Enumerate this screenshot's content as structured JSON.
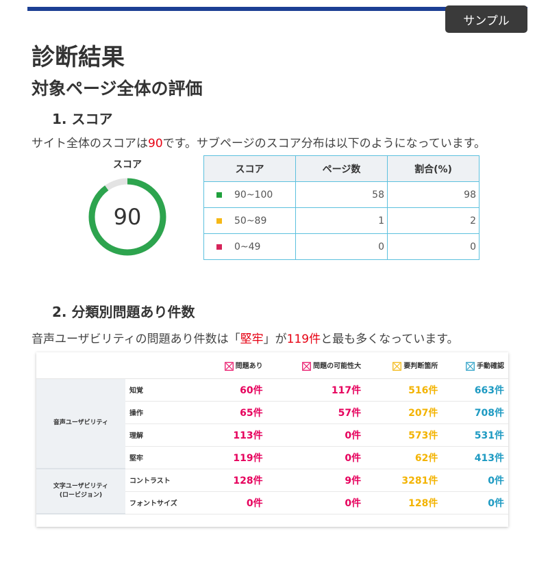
{
  "badge": "サンプル",
  "title": "診断結果",
  "subtitle": "対象ページ全体の評価",
  "section1": {
    "heading": "1. スコア",
    "text_before": "サイト全体のスコアは",
    "score": "90",
    "text_after": "です。サブページのスコア分布は以下のようになっています。",
    "gauge_label": "スコア",
    "gauge_value": "90",
    "gauge_fraction": 0.9,
    "colors": {
      "good": "#2da44e",
      "track": "#e3e3e3"
    },
    "table": {
      "headers": [
        "スコア",
        "ページ数",
        "割合(%)"
      ],
      "rows": [
        {
          "range": "90~100",
          "pages": "58",
          "percent": "98",
          "color": "#1fa03c"
        },
        {
          "range": "50~89",
          "pages": "1",
          "percent": "2",
          "color": "#f5b817"
        },
        {
          "range": "0~49",
          "pages": "0",
          "percent": "0",
          "color": "#d6245a"
        }
      ]
    }
  },
  "section2": {
    "heading": "2. 分類別問題あり件数",
    "text_1": "音声ユーザビリティの問題あり件数は「",
    "highlight_cat": "堅牢",
    "text_2": "」が",
    "highlight_count": "119件",
    "text_3": "と最も多くなっています。",
    "columns": [
      {
        "label": "問題あり",
        "icon": "x-box-icon",
        "color": "#e6005c"
      },
      {
        "label": "問題の可能性大",
        "icon": "x-box-icon",
        "color": "#e6005c"
      },
      {
        "label": "要判断箇所",
        "icon": "x-box-icon",
        "color": "#f3b300"
      },
      {
        "label": "手動確認",
        "icon": "x-box-icon",
        "color": "#1d9ac2"
      }
    ],
    "groups": [
      {
        "name": "音声ユーザビリティ",
        "rows": [
          {
            "cat": "知覚",
            "v": [
              "60件",
              "117件",
              "516件",
              "663件"
            ]
          },
          {
            "cat": "操作",
            "v": [
              "65件",
              "57件",
              "207件",
              "708件"
            ]
          },
          {
            "cat": "理解",
            "v": [
              "113件",
              "0件",
              "573件",
              "531件"
            ]
          },
          {
            "cat": "堅牢",
            "v": [
              "119件",
              "0件",
              "62件",
              "413件"
            ]
          }
        ]
      },
      {
        "name": "文字ユーザビリティ",
        "name_sub": "(ロービジョン)",
        "rows": [
          {
            "cat": "コントラスト",
            "v": [
              "128件",
              "9件",
              "3281件",
              "0件"
            ]
          },
          {
            "cat": "フォントサイズ",
            "v": [
              "0件",
              "0件",
              "128件",
              "0件"
            ]
          }
        ]
      }
    ]
  }
}
